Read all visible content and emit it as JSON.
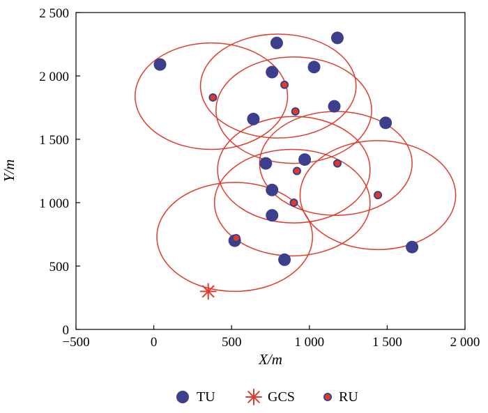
{
  "chart_data": {
    "type": "scatter",
    "xlabel": "X/m",
    "ylabel": "Y/m",
    "xlim": [
      -500,
      2000
    ],
    "ylim": [
      0,
      2500
    ],
    "x_ticks": [
      -500,
      0,
      500,
      1000,
      1500,
      2000
    ],
    "y_ticks": [
      0,
      500,
      1000,
      1500,
      2000,
      2500
    ],
    "x_tick_labels": [
      "−500",
      "0",
      "500",
      "1 000",
      "1 500",
      "2 000"
    ],
    "y_tick_labels": [
      "0",
      "500",
      "1 000",
      "1 500",
      "2 000",
      "2 500"
    ],
    "grid": false,
    "legend_position": "bottom-center",
    "series": [
      {
        "name": "TU",
        "marker": "large-dot",
        "color": "#3b3f8c",
        "points": [
          {
            "x": 40,
            "y": 2090
          },
          {
            "x": 790,
            "y": 2260
          },
          {
            "x": 1180,
            "y": 2300
          },
          {
            "x": 760,
            "y": 2030
          },
          {
            "x": 1030,
            "y": 2070
          },
          {
            "x": 1160,
            "y": 1760
          },
          {
            "x": 640,
            "y": 1660
          },
          {
            "x": 1490,
            "y": 1630
          },
          {
            "x": 720,
            "y": 1310
          },
          {
            "x": 970,
            "y": 1340
          },
          {
            "x": 760,
            "y": 1100
          },
          {
            "x": 760,
            "y": 900
          },
          {
            "x": 520,
            "y": 700
          },
          {
            "x": 840,
            "y": 550
          },
          {
            "x": 1660,
            "y": 650
          }
        ]
      },
      {
        "name": "GCS",
        "marker": "asterisk",
        "color": "#e03a2a",
        "points": [
          {
            "x": 350,
            "y": 300
          }
        ]
      },
      {
        "name": "RU",
        "marker": "small-dot-red-center",
        "color": "#e03a2a",
        "points": [
          {
            "x": 380,
            "y": 1830
          },
          {
            "x": 840,
            "y": 1930
          },
          {
            "x": 910,
            "y": 1720
          },
          {
            "x": 920,
            "y": 1250
          },
          {
            "x": 1180,
            "y": 1310
          },
          {
            "x": 1440,
            "y": 1060
          },
          {
            "x": 900,
            "y": 1000
          },
          {
            "x": 530,
            "y": 720
          }
        ]
      }
    ],
    "circles": [
      {
        "cx": 370,
        "cy": 1840,
        "rx": 490,
        "ry": 420
      },
      {
        "cx": 800,
        "cy": 1920,
        "rx": 500,
        "ry": 410
      },
      {
        "cx": 900,
        "cy": 1730,
        "rx": 500,
        "ry": 420
      },
      {
        "cx": 900,
        "cy": 1260,
        "rx": 490,
        "ry": 420
      },
      {
        "cx": 1170,
        "cy": 1310,
        "rx": 490,
        "ry": 410
      },
      {
        "cx": 1440,
        "cy": 1060,
        "rx": 500,
        "ry": 430
      },
      {
        "cx": 890,
        "cy": 1000,
        "rx": 500,
        "ry": 420
      },
      {
        "cx": 520,
        "cy": 730,
        "rx": 500,
        "ry": 430
      }
    ],
    "circle_color": "#e03a2a"
  }
}
